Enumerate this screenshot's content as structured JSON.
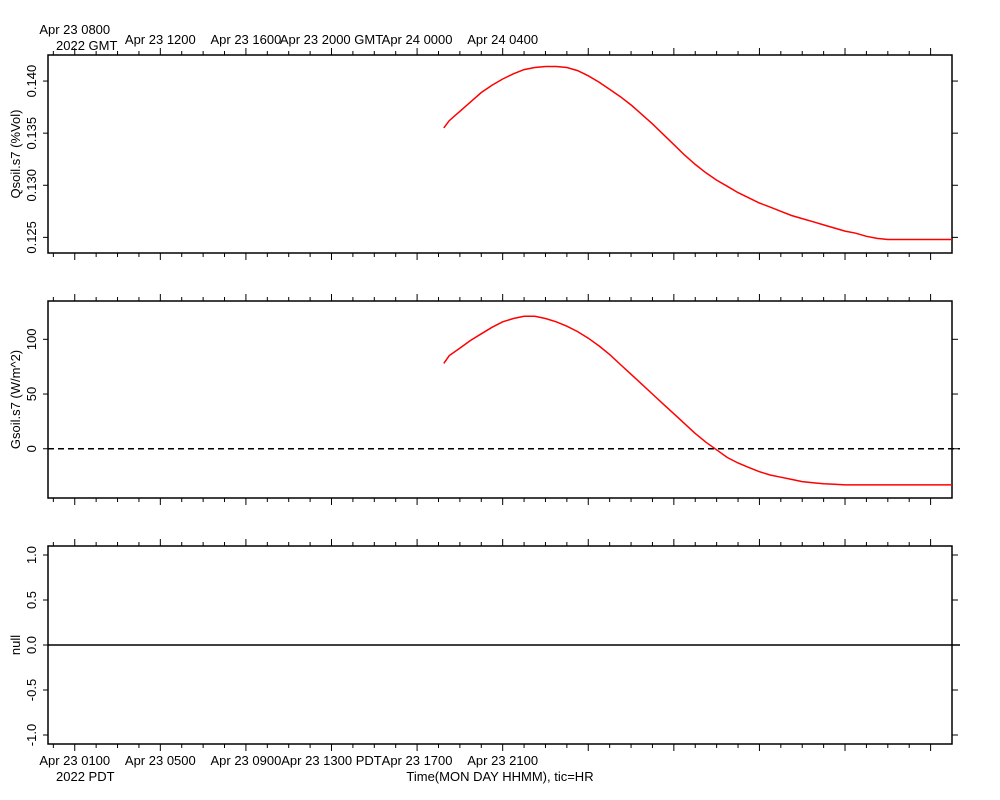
{
  "chart_data": [
    {
      "type": "line",
      "ylabel": "Qsoil.s7 (%Vol)",
      "ylim": [
        0.1235,
        0.1425
      ],
      "yticks": [
        "0.125",
        "0.130",
        "0.135",
        "0.140"
      ],
      "grid": false,
      "series": [
        {
          "name": "Qsoil.s7",
          "color": "#ff0000",
          "x_hours_since_apr23_0700gmt": [
            18.25,
            18.5,
            19.0,
            19.5,
            20.0,
            20.5,
            21.0,
            21.5,
            22.0,
            22.5,
            23.0,
            23.5,
            24.0,
            24.5,
            25.0,
            25.5,
            26.0,
            26.5,
            27.0,
            27.5,
            28.0,
            28.5,
            29.0,
            29.5,
            30.0,
            30.5,
            31.0,
            31.5,
            32.0,
            32.5,
            33.0,
            33.5,
            34.0,
            34.5,
            35.0,
            35.5,
            36.0,
            36.5,
            37.0,
            37.5,
            38.0,
            38.5,
            39.0,
            39.5,
            40.0,
            40.5,
            41.0,
            41.5,
            42.0
          ],
          "y": [
            0.1355,
            0.1362,
            0.1371,
            0.138,
            0.1389,
            0.1396,
            0.1402,
            0.1407,
            0.1411,
            0.1413,
            0.1414,
            0.1414,
            0.1413,
            0.141,
            0.1405,
            0.1399,
            0.1392,
            0.1385,
            0.1377,
            0.1368,
            0.1359,
            0.1349,
            0.1339,
            0.1329,
            0.132,
            0.1312,
            0.1305,
            0.1299,
            0.1293,
            0.1288,
            0.1283,
            0.1279,
            0.1275,
            0.1271,
            0.1268,
            0.1265,
            0.1262,
            0.1259,
            0.1256,
            0.1254,
            0.1251,
            0.1249,
            0.1248,
            0.1248,
            0.1248,
            0.1248,
            0.1248,
            0.1248,
            0.1248
          ]
        }
      ]
    },
    {
      "type": "line",
      "ylabel": "Gsoil.s7 (W/m^2)",
      "ylim": [
        -45,
        135
      ],
      "yticks": [
        "0",
        "50",
        "100"
      ],
      "zero_line": "dashed",
      "grid": false,
      "series": [
        {
          "name": "Gsoil.s7",
          "color": "#ff0000",
          "x_hours_since_apr23_0700gmt": [
            18.25,
            18.5,
            19.0,
            19.5,
            20.0,
            20.5,
            21.0,
            21.5,
            22.0,
            22.5,
            23.0,
            23.5,
            24.0,
            24.5,
            25.0,
            25.5,
            26.0,
            26.5,
            27.0,
            27.5,
            28.0,
            28.5,
            29.0,
            29.5,
            30.0,
            30.5,
            31.0,
            31.5,
            32.0,
            32.5,
            33.0,
            33.5,
            34.0,
            34.5,
            35.0,
            35.5,
            36.0,
            36.5,
            37.0,
            37.5,
            38.0,
            38.5,
            39.0,
            39.5,
            40.0,
            40.5,
            41.0,
            41.5,
            42.0
          ],
          "y": [
            78,
            85,
            92,
            99,
            105,
            111,
            116,
            119,
            121,
            121,
            119,
            116,
            112,
            107,
            101,
            94,
            86,
            77,
            68,
            59,
            50,
            41,
            32,
            23,
            14,
            6,
            -1,
            -8,
            -13,
            -17,
            -21,
            -24,
            -26,
            -28,
            -30,
            -31,
            -32,
            -32.5,
            -33,
            -33,
            -33,
            -33,
            -33,
            -33,
            -33,
            -33,
            -33,
            -33,
            -33
          ]
        }
      ]
    },
    {
      "type": "line",
      "ylabel": "null",
      "ylim": [
        -1.1,
        1.1
      ],
      "yticks": [
        "-1.0",
        "-0.5",
        "0.0",
        "0.5",
        "1.0"
      ],
      "zero_line": "solid",
      "grid": false,
      "series": []
    }
  ],
  "time_axis": {
    "xlim_hours": [
      -0.25,
      42
    ],
    "xlabel": "Time(MON DAY HHMM), tic=HR",
    "top_labels": [
      {
        "hour": 1,
        "text": "Apr 23 0800"
      },
      {
        "hour": 5,
        "text": "Apr 23 1200"
      },
      {
        "hour": 9,
        "text": "Apr 23 1600"
      },
      {
        "hour": 13,
        "text": "Apr 23 2000 GMT"
      },
      {
        "hour": 17,
        "text": "Apr 24 0000"
      },
      {
        "hour": 21,
        "text": "Apr 24 0400"
      }
    ],
    "top_year": "2022 GMT",
    "bottom_labels": [
      {
        "hour": 1,
        "text": "Apr 23 0100"
      },
      {
        "hour": 5,
        "text": "Apr 23 0500"
      },
      {
        "hour": 9,
        "text": "Apr 23 0900"
      },
      {
        "hour": 13,
        "text": "Apr 23 1300 PDT"
      },
      {
        "hour": 17,
        "text": "Apr 23 1700"
      },
      {
        "hour": 21,
        "text": "Apr 23 2100"
      }
    ],
    "bottom_year": "2022 PDT"
  }
}
